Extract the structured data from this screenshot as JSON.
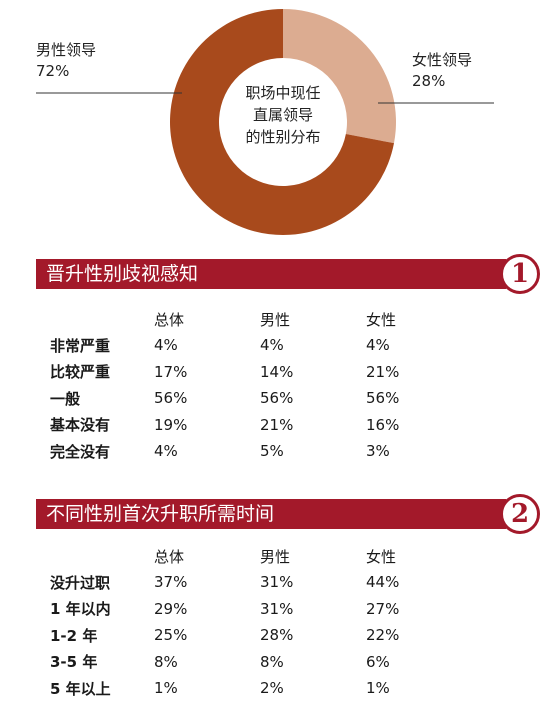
{
  "chart_data": [
    {
      "type": "pie",
      "center_label": [
        "职场中现任",
        "直属领导",
        "的性别分布"
      ],
      "slices": [
        {
          "name": "男性领导",
          "value": 72,
          "value_label": "72%",
          "color": "#a84a1c"
        },
        {
          "name": "女性领导",
          "value": 28,
          "value_label": "28%",
          "color": "#dcac91"
        }
      ]
    },
    {
      "type": "table",
      "title": "晋升性别歧视感知",
      "badge": "1",
      "columns": [
        "总体",
        "男性",
        "女性"
      ],
      "rows": [
        {
          "label": "非常严重",
          "values": [
            "4%",
            "4%",
            "4%"
          ]
        },
        {
          "label": "比较严重",
          "values": [
            "17%",
            "14%",
            "21%"
          ]
        },
        {
          "label": "一般",
          "values": [
            "56%",
            "56%",
            "56%"
          ]
        },
        {
          "label": "基本没有",
          "values": [
            "19%",
            "21%",
            "16%"
          ]
        },
        {
          "label": "完全没有",
          "values": [
            "4%",
            "5%",
            "3%"
          ]
        }
      ]
    },
    {
      "type": "table",
      "title": "不同性别首次升职所需时间",
      "badge": "2",
      "columns": [
        "总体",
        "男性",
        "女性"
      ],
      "rows": [
        {
          "label": "没升过职",
          "values": [
            "37%",
            "31%",
            "44%"
          ]
        },
        {
          "label": "1 年以内",
          "values": [
            "29%",
            "31%",
            "27%"
          ]
        },
        {
          "label": "1-2 年",
          "values": [
            "25%",
            "28%",
            "22%"
          ]
        },
        {
          "label": "3-5 年",
          "values": [
            "8%",
            "8%",
            "6%"
          ]
        },
        {
          "label": "5 年以上",
          "values": [
            "1%",
            "2%",
            "1%"
          ]
        }
      ]
    }
  ]
}
